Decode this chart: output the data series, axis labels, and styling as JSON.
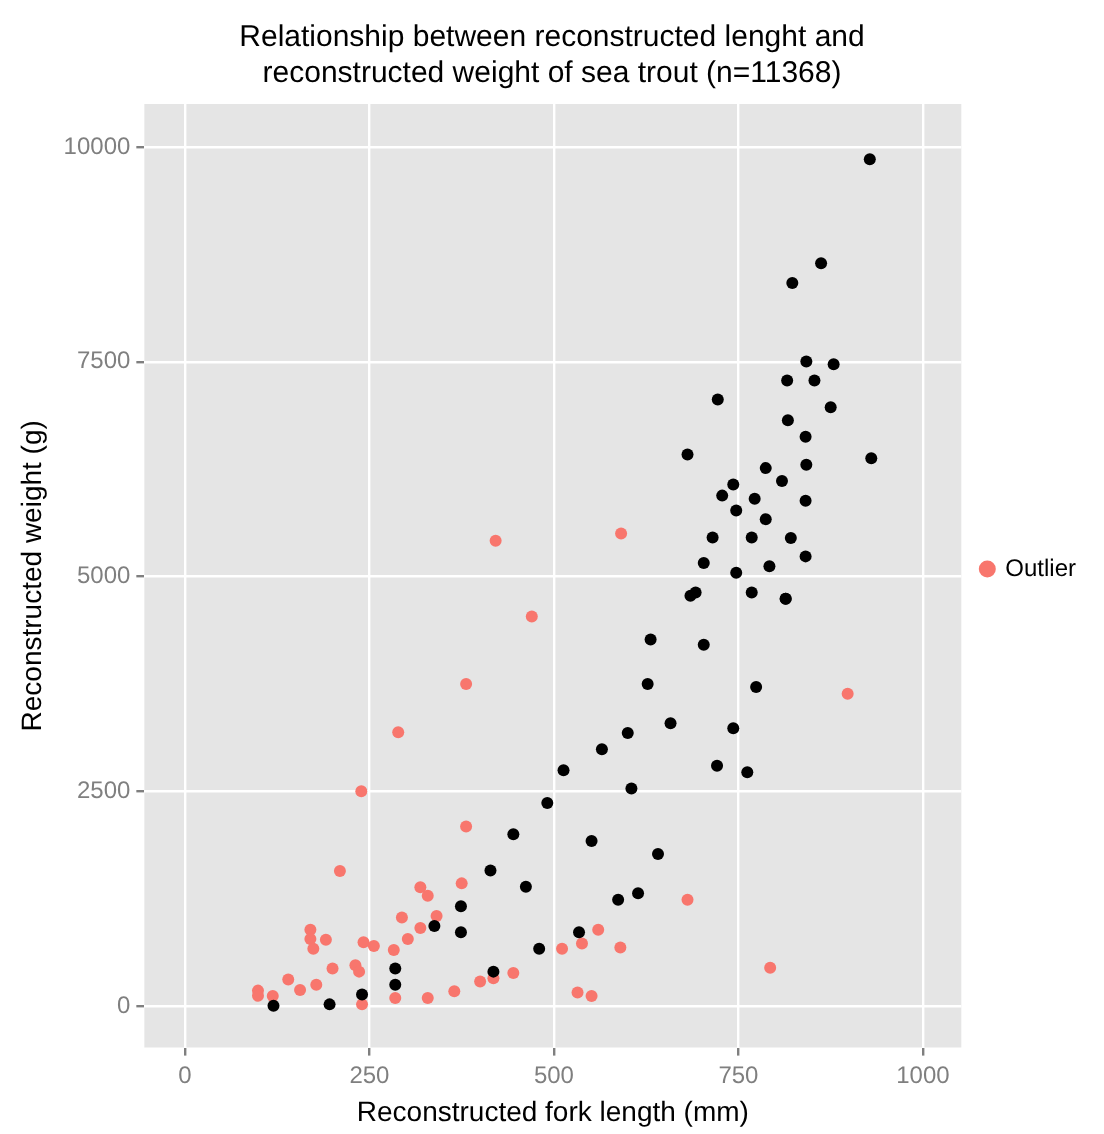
{
  "chart_data": {
    "type": "scatter",
    "title": "Relationship between reconstructed lenght and\nreconstructed weight of sea trout (n=11368)",
    "xlabel": "Reconstructed fork length (mm)",
    "ylabel": "Reconstructed weight (g)",
    "xlim": [
      -55,
      1052
    ],
    "ylim": [
      -480,
      10500
    ],
    "xticks": [
      0,
      250,
      500,
      750,
      1000
    ],
    "yticks": [
      0,
      2500,
      5000,
      7500,
      10000
    ],
    "grid": true,
    "legend": "right",
    "marker": "circle",
    "series": [
      {
        "color": "#000000",
        "x": [
          120,
          196,
          240,
          285,
          285,
          338,
          374,
          374,
          414,
          418,
          445,
          462,
          480,
          491,
          513,
          534,
          551,
          565,
          587,
          600,
          605,
          614,
          627,
          631,
          641,
          658,
          685,
          703,
          721,
          743,
          762,
          774,
          814,
          928,
          862,
          823,
          842,
          879,
          816,
          853,
          722,
          875,
          817,
          681,
          930,
          841,
          842,
          787,
          809,
          743,
          728,
          841,
          772,
          747,
          787,
          715,
          821,
          768,
          841,
          703,
          792,
          747,
          692,
          814,
          768
        ],
        "values": [
          7,
          23,
          137,
          251,
          441,
          936,
          861,
          1164,
          1582,
          404,
          2002,
          1393,
          669,
          2367,
          2747,
          861,
          1925,
          2991,
          1240,
          3181,
          2534,
          1317,
          3751,
          4269,
          1774,
          3295,
          4779,
          4208,
          2801,
          3235,
          2724,
          3715,
          4742,
          9856,
          8646,
          8418,
          7505,
          7473,
          7283,
          7283,
          7062,
          6970,
          6820,
          6422,
          6377,
          6628,
          6301,
          6263,
          6112,
          6073,
          5943,
          5883,
          5906,
          5769,
          5669,
          5457,
          5450,
          5457,
          5236,
          5160,
          5121,
          5046,
          4817,
          4742,
          4817
        ]
      },
      {
        "name": "Outlier",
        "color": "#f8766d",
        "x": [
          421,
          591,
          470,
          381,
          289,
          898,
          239,
          381,
          210,
          681,
          793,
          319,
          329,
          375,
          294,
          170,
          170,
          174,
          191,
          242,
          256,
          283,
          319,
          341,
          560,
          538,
          511,
          590,
          532,
          551,
          140,
          99,
          99,
          119,
          156,
          178,
          200,
          231,
          236,
          240,
          285,
          329,
          365,
          400,
          418,
          445,
          302
        ],
        "values": [
          5418,
          5502,
          4537,
          3751,
          3189,
          3637,
          2504,
          2093,
          1575,
          1240,
          450,
          1385,
          1286,
          1431,
          1034,
          890,
          783,
          669,
          776,
          746,
          701,
          655,
          913,
          1050,
          890,
          731,
          669,
          685,
          160,
          121,
          313,
          183,
          122,
          121,
          190,
          251,
          441,
          479,
          404,
          23,
          98,
          98,
          176,
          290,
          327,
          388,
          783
        ]
      }
    ]
  }
}
